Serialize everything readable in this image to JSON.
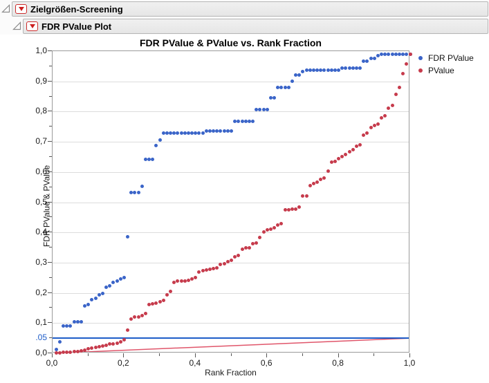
{
  "outline": {
    "level1_title": "Zielgrößen-Screening",
    "level2_title": "FDR PValue Plot"
  },
  "chart_data": {
    "type": "scatter",
    "title": "FDR PValue & PValue vs. Rank Fraction",
    "xlabel": "Rank Fraction",
    "ylabel": "FDR PValue & PValue",
    "xlim": [
      0,
      1
    ],
    "ylim": [
      0,
      1
    ],
    "grid": "horizontal",
    "x_axis": {
      "majors": [
        {
          "value": 0.0,
          "label": "0,0"
        },
        {
          "value": 0.2,
          "label": "0,2"
        },
        {
          "value": 0.4,
          "label": "0,4"
        },
        {
          "value": 0.6,
          "label": "0,6"
        },
        {
          "value": 0.8,
          "label": "0,8"
        },
        {
          "value": 1.0,
          "label": "1,0"
        }
      ],
      "minor_step": 0.1
    },
    "y_axis": {
      "majors": [
        {
          "value": 0.0,
          "label": "0,0"
        },
        {
          "value": 0.1,
          "label": "0,1"
        },
        {
          "value": 0.2,
          "label": "0,2"
        },
        {
          "value": 0.3,
          "label": "0,3"
        },
        {
          "value": 0.4,
          "label": "0,4"
        },
        {
          "value": 0.5,
          "label": "0,5"
        },
        {
          "value": 0.6,
          "label": "0,6"
        },
        {
          "value": 0.7,
          "label": "0,7"
        },
        {
          "value": 0.8,
          "label": "0,8"
        },
        {
          "value": 0.9,
          "label": "0,9"
        },
        {
          "value": 1.0,
          "label": "1,0"
        }
      ],
      "minor_step": 0.05,
      "special_label": {
        "text": ".05",
        "value": 0.05,
        "color": "#1d5cc8"
      }
    },
    "reference_lines": [
      {
        "name": "alpha-0.05-line",
        "type": "horizontal",
        "y": 0.05,
        "color": "#1d5cc8"
      },
      {
        "name": "fdr-threshold-line",
        "type": "segment",
        "x1": 0,
        "y1": 0,
        "x2": 1,
        "y2": 0.05,
        "color": "#e0556a"
      }
    ],
    "legend": {
      "position": "right-top",
      "entries": [
        {
          "label": "FDR PValue",
          "color": "#3a64c8"
        },
        {
          "label": "PValue",
          "color": "#c63b4c"
        }
      ]
    },
    "series": [
      {
        "name": "FDR PValue",
        "color": "#3a64c8",
        "points": [
          [
            0.01,
            0.013
          ],
          [
            0.02,
            0.038
          ],
          [
            0.03,
            0.09
          ],
          [
            0.04,
            0.09
          ],
          [
            0.05,
            0.09
          ],
          [
            0.06,
            0.103
          ],
          [
            0.07,
            0.103
          ],
          [
            0.08,
            0.103
          ],
          [
            0.09,
            0.157
          ],
          [
            0.1,
            0.161
          ],
          [
            0.11,
            0.178
          ],
          [
            0.12,
            0.182
          ],
          [
            0.13,
            0.193
          ],
          [
            0.14,
            0.199
          ],
          [
            0.15,
            0.218
          ],
          [
            0.16,
            0.224
          ],
          [
            0.17,
            0.234
          ],
          [
            0.18,
            0.24
          ],
          [
            0.19,
            0.246
          ],
          [
            0.2,
            0.25
          ],
          [
            0.21,
            0.386
          ],
          [
            0.22,
            0.531
          ],
          [
            0.23,
            0.531
          ],
          [
            0.24,
            0.531
          ],
          [
            0.25,
            0.552
          ],
          [
            0.26,
            0.641
          ],
          [
            0.27,
            0.641
          ],
          [
            0.28,
            0.641
          ],
          [
            0.29,
            0.688
          ],
          [
            0.3,
            0.705
          ],
          [
            0.31,
            0.728
          ],
          [
            0.32,
            0.728
          ],
          [
            0.33,
            0.728
          ],
          [
            0.34,
            0.728
          ],
          [
            0.35,
            0.728
          ],
          [
            0.36,
            0.728
          ],
          [
            0.37,
            0.728
          ],
          [
            0.38,
            0.728
          ],
          [
            0.39,
            0.728
          ],
          [
            0.4,
            0.728
          ],
          [
            0.41,
            0.728
          ],
          [
            0.42,
            0.728
          ],
          [
            0.43,
            0.736
          ],
          [
            0.44,
            0.736
          ],
          [
            0.45,
            0.736
          ],
          [
            0.46,
            0.736
          ],
          [
            0.47,
            0.736
          ],
          [
            0.48,
            0.736
          ],
          [
            0.49,
            0.736
          ],
          [
            0.5,
            0.736
          ],
          [
            0.51,
            0.768
          ],
          [
            0.52,
            0.768
          ],
          [
            0.53,
            0.768
          ],
          [
            0.54,
            0.768
          ],
          [
            0.55,
            0.768
          ],
          [
            0.56,
            0.768
          ],
          [
            0.57,
            0.807
          ],
          [
            0.58,
            0.807
          ],
          [
            0.59,
            0.807
          ],
          [
            0.6,
            0.807
          ],
          [
            0.61,
            0.845
          ],
          [
            0.62,
            0.845
          ],
          [
            0.63,
            0.88
          ],
          [
            0.64,
            0.88
          ],
          [
            0.65,
            0.88
          ],
          [
            0.66,
            0.88
          ],
          [
            0.67,
            0.9
          ],
          [
            0.68,
            0.921
          ],
          [
            0.69,
            0.921
          ],
          [
            0.7,
            0.933
          ],
          [
            0.71,
            0.937
          ],
          [
            0.72,
            0.937
          ],
          [
            0.73,
            0.937
          ],
          [
            0.74,
            0.937
          ],
          [
            0.75,
            0.937
          ],
          [
            0.76,
            0.937
          ],
          [
            0.77,
            0.937
          ],
          [
            0.78,
            0.937
          ],
          [
            0.79,
            0.937
          ],
          [
            0.8,
            0.937
          ],
          [
            0.81,
            0.944
          ],
          [
            0.82,
            0.944
          ],
          [
            0.83,
            0.944
          ],
          [
            0.84,
            0.944
          ],
          [
            0.85,
            0.944
          ],
          [
            0.86,
            0.944
          ],
          [
            0.87,
            0.966
          ],
          [
            0.88,
            0.966
          ],
          [
            0.89,
            0.977
          ],
          [
            0.9,
            0.977
          ],
          [
            0.91,
            0.985
          ],
          [
            0.92,
            0.989
          ],
          [
            0.93,
            0.989
          ],
          [
            0.94,
            0.989
          ],
          [
            0.95,
            0.989
          ],
          [
            0.96,
            0.989
          ],
          [
            0.97,
            0.989
          ],
          [
            0.98,
            0.989
          ],
          [
            0.99,
            0.989
          ],
          [
            1.0,
            0.989
          ]
        ]
      },
      {
        "name": "PValue",
        "color": "#c63b4c",
        "points": [
          [
            0.01,
            0.001
          ],
          [
            0.02,
            0.002
          ],
          [
            0.03,
            0.003
          ],
          [
            0.04,
            0.003
          ],
          [
            0.05,
            0.004
          ],
          [
            0.06,
            0.005
          ],
          [
            0.07,
            0.006
          ],
          [
            0.08,
            0.008
          ],
          [
            0.09,
            0.011
          ],
          [
            0.1,
            0.014
          ],
          [
            0.11,
            0.017
          ],
          [
            0.12,
            0.02
          ],
          [
            0.13,
            0.022
          ],
          [
            0.14,
            0.024
          ],
          [
            0.15,
            0.027
          ],
          [
            0.16,
            0.03
          ],
          [
            0.17,
            0.032
          ],
          [
            0.18,
            0.034
          ],
          [
            0.19,
            0.038
          ],
          [
            0.2,
            0.044
          ],
          [
            0.21,
            0.077
          ],
          [
            0.22,
            0.113
          ],
          [
            0.23,
            0.119
          ],
          [
            0.24,
            0.121
          ],
          [
            0.25,
            0.124
          ],
          [
            0.26,
            0.132
          ],
          [
            0.27,
            0.161
          ],
          [
            0.28,
            0.163
          ],
          [
            0.29,
            0.165
          ],
          [
            0.3,
            0.17
          ],
          [
            0.31,
            0.176
          ],
          [
            0.32,
            0.193
          ],
          [
            0.33,
            0.205
          ],
          [
            0.34,
            0.235
          ],
          [
            0.35,
            0.238
          ],
          [
            0.36,
            0.238
          ],
          [
            0.37,
            0.239
          ],
          [
            0.38,
            0.241
          ],
          [
            0.39,
            0.247
          ],
          [
            0.4,
            0.251
          ],
          [
            0.41,
            0.27
          ],
          [
            0.42,
            0.273
          ],
          [
            0.43,
            0.276
          ],
          [
            0.44,
            0.279
          ],
          [
            0.45,
            0.281
          ],
          [
            0.46,
            0.282
          ],
          [
            0.47,
            0.293
          ],
          [
            0.48,
            0.297
          ],
          [
            0.49,
            0.303
          ],
          [
            0.5,
            0.308
          ],
          [
            0.51,
            0.32
          ],
          [
            0.52,
            0.323
          ],
          [
            0.53,
            0.345
          ],
          [
            0.54,
            0.349
          ],
          [
            0.55,
            0.349
          ],
          [
            0.56,
            0.362
          ],
          [
            0.57,
            0.364
          ],
          [
            0.58,
            0.383
          ],
          [
            0.59,
            0.402
          ],
          [
            0.6,
            0.408
          ],
          [
            0.61,
            0.41
          ],
          [
            0.62,
            0.415
          ],
          [
            0.63,
            0.425
          ],
          [
            0.64,
            0.429
          ],
          [
            0.65,
            0.474
          ],
          [
            0.66,
            0.475
          ],
          [
            0.67,
            0.476
          ],
          [
            0.68,
            0.477
          ],
          [
            0.69,
            0.484
          ],
          [
            0.7,
            0.521
          ],
          [
            0.71,
            0.521
          ],
          [
            0.72,
            0.556
          ],
          [
            0.73,
            0.561
          ],
          [
            0.74,
            0.567
          ],
          [
            0.75,
            0.576
          ],
          [
            0.76,
            0.579
          ],
          [
            0.77,
            0.602
          ],
          [
            0.78,
            0.632
          ],
          [
            0.79,
            0.634
          ],
          [
            0.8,
            0.645
          ],
          [
            0.81,
            0.651
          ],
          [
            0.82,
            0.659
          ],
          [
            0.83,
            0.668
          ],
          [
            0.84,
            0.674
          ],
          [
            0.85,
            0.686
          ],
          [
            0.86,
            0.691
          ],
          [
            0.87,
            0.722
          ],
          [
            0.88,
            0.728
          ],
          [
            0.89,
            0.748
          ],
          [
            0.9,
            0.755
          ],
          [
            0.91,
            0.758
          ],
          [
            0.92,
            0.779
          ],
          [
            0.93,
            0.785
          ],
          [
            0.94,
            0.812
          ],
          [
            0.95,
            0.82
          ],
          [
            0.96,
            0.856
          ],
          [
            0.97,
            0.881
          ],
          [
            0.98,
            0.925
          ],
          [
            0.99,
            0.958
          ],
          [
            1.0,
            0.989
          ]
        ]
      }
    ]
  }
}
